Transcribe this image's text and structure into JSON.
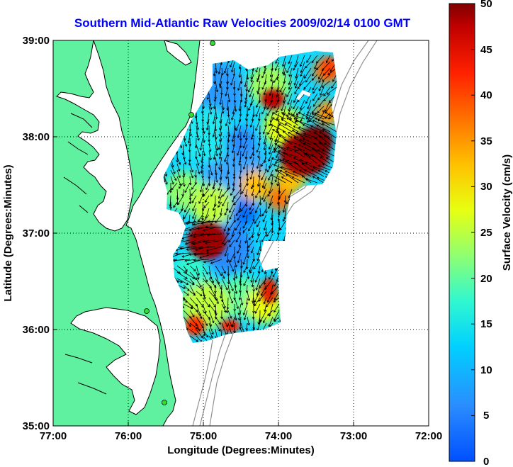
{
  "title": "Southern Mid-Atlantic Raw Velocities 2009/02/14 0100 GMT",
  "x_axis": {
    "label": "Longitude (Degrees:Minutes)",
    "ticks": [
      "77:00",
      "76:00",
      "75:00",
      "74:00",
      "73:00",
      "72:00"
    ]
  },
  "y_axis": {
    "label": "Latitude (Degrees:Minutes)",
    "ticks": [
      "39:00",
      "38:00",
      "37:00",
      "36:00",
      "35:00"
    ]
  },
  "colorbar": {
    "label": "Surface Velocity (cm/s)",
    "ticks": [
      "50",
      "45",
      "40",
      "35",
      "30",
      "25",
      "20",
      "15",
      "10",
      "5",
      "0"
    ],
    "range": [
      0,
      50
    ],
    "colormap": "jet"
  },
  "map": {
    "lon_range_west": [
      77,
      72
    ],
    "lat_range": [
      35,
      39
    ],
    "land_color": "#5ff0a0",
    "coastline_color": "#000000",
    "bathymetry_color": "#909090",
    "grid": "dotted"
  },
  "chart_data": {
    "type": "heatmap",
    "title": "Southern Mid-Atlantic Raw Velocities 2009/02/14 0100 GMT",
    "xlabel": "Longitude (Degrees:Minutes)",
    "ylabel": "Latitude (Degrees:Minutes)",
    "colorbar_label": "Surface Velocity (cm/s)",
    "clim": [
      0,
      50
    ],
    "hotspots": [
      {
        "lon_w": 73.6,
        "lat": 37.75,
        "speed": 50
      },
      {
        "lon_w": 74.9,
        "lat": 36.9,
        "speed": 50
      },
      {
        "lon_w": 73.95,
        "lat": 36.45,
        "speed": 45
      },
      {
        "lon_w": 74.2,
        "lat": 38.45,
        "speed": 45
      },
      {
        "lon_w": 73.3,
        "lat": 38.8,
        "speed": 38
      },
      {
        "lon_w": 74.6,
        "lat": 35.95,
        "speed": 45
      },
      {
        "lon_w": 75.0,
        "lat": 36.1,
        "speed": 40
      },
      {
        "lon_w": 74.1,
        "lat": 37.2,
        "speed": 35
      }
    ]
  }
}
